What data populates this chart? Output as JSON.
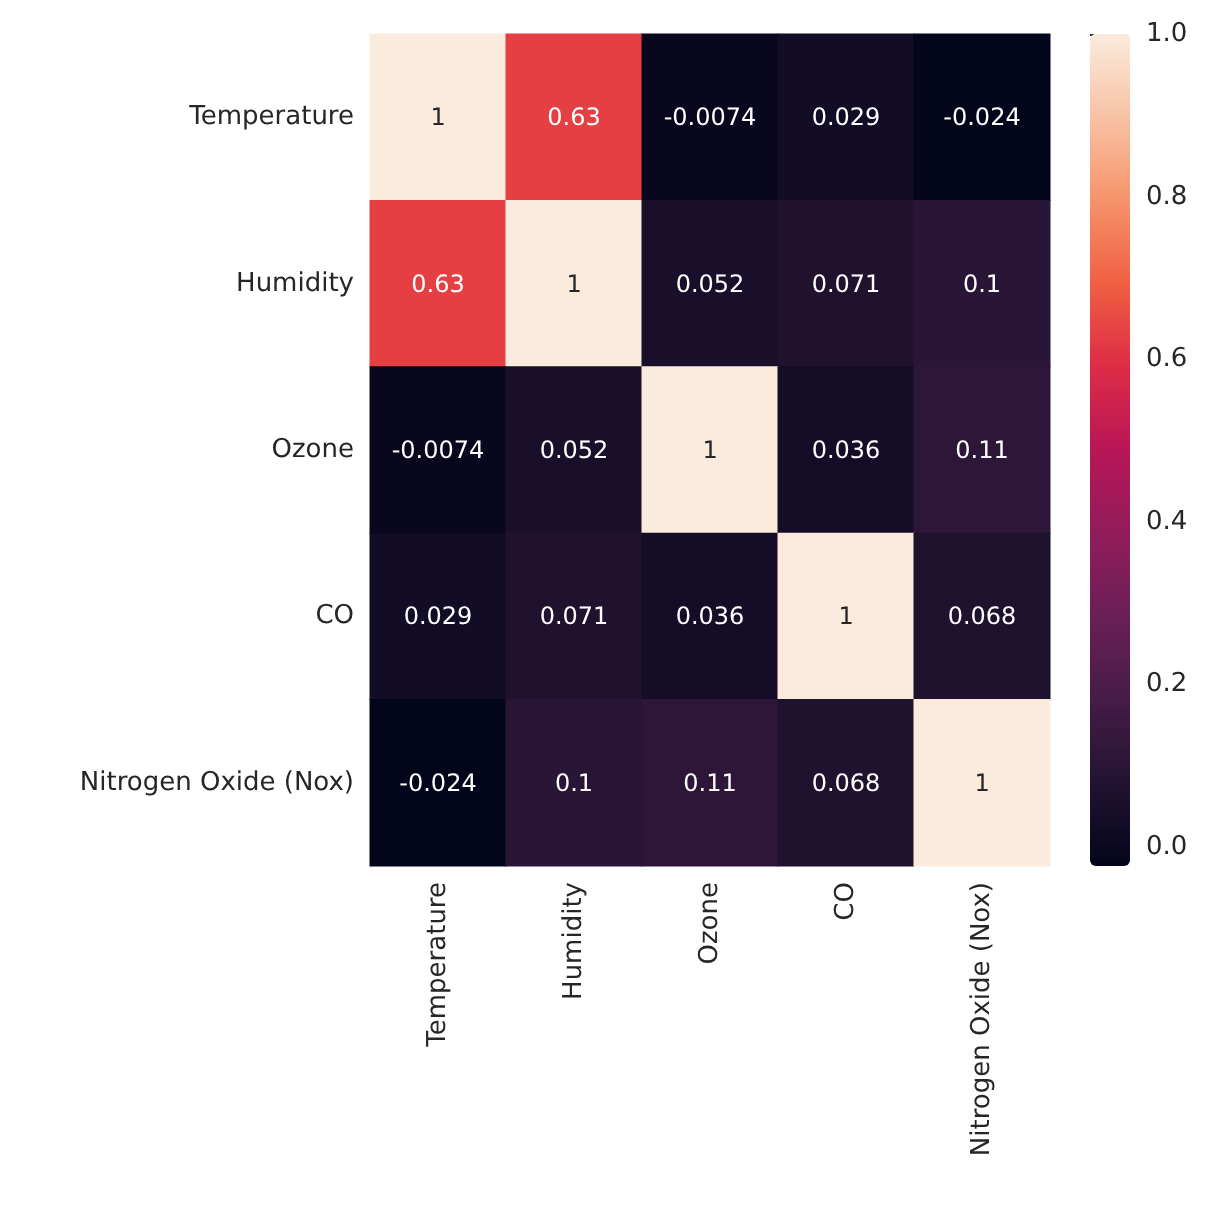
{
  "chart_data": {
    "type": "heatmap",
    "categories": [
      "Temperature",
      "Humidity",
      "Ozone",
      "CO",
      "Nitrogen Oxide (Nox)"
    ],
    "y_categories": [
      "Temperature",
      "Humidity",
      "Ozone",
      "CO",
      "Nitrogen Oxide (Nox)"
    ],
    "cells": [
      [
        1,
        0.63,
        -0.0074,
        0.029,
        -0.024
      ],
      [
        0.63,
        1,
        0.052,
        0.071,
        0.1
      ],
      [
        -0.0074,
        0.052,
        1,
        0.036,
        0.11
      ],
      [
        0.029,
        0.071,
        0.036,
        1,
        0.068
      ],
      [
        -0.024,
        0.1,
        0.11,
        0.068,
        1
      ]
    ],
    "data_labels": true,
    "clim": [
      -0.024,
      1
    ],
    "cticks": [
      {
        "value": 0,
        "label": "0.0"
      },
      {
        "value": 0.2,
        "label": "0.2"
      },
      {
        "value": 0.4,
        "label": "0.4"
      },
      {
        "value": 0.6,
        "label": "0.6"
      },
      {
        "value": 0.8,
        "label": "0.8"
      },
      {
        "value": 1,
        "label": "1.0"
      }
    ]
  }
}
